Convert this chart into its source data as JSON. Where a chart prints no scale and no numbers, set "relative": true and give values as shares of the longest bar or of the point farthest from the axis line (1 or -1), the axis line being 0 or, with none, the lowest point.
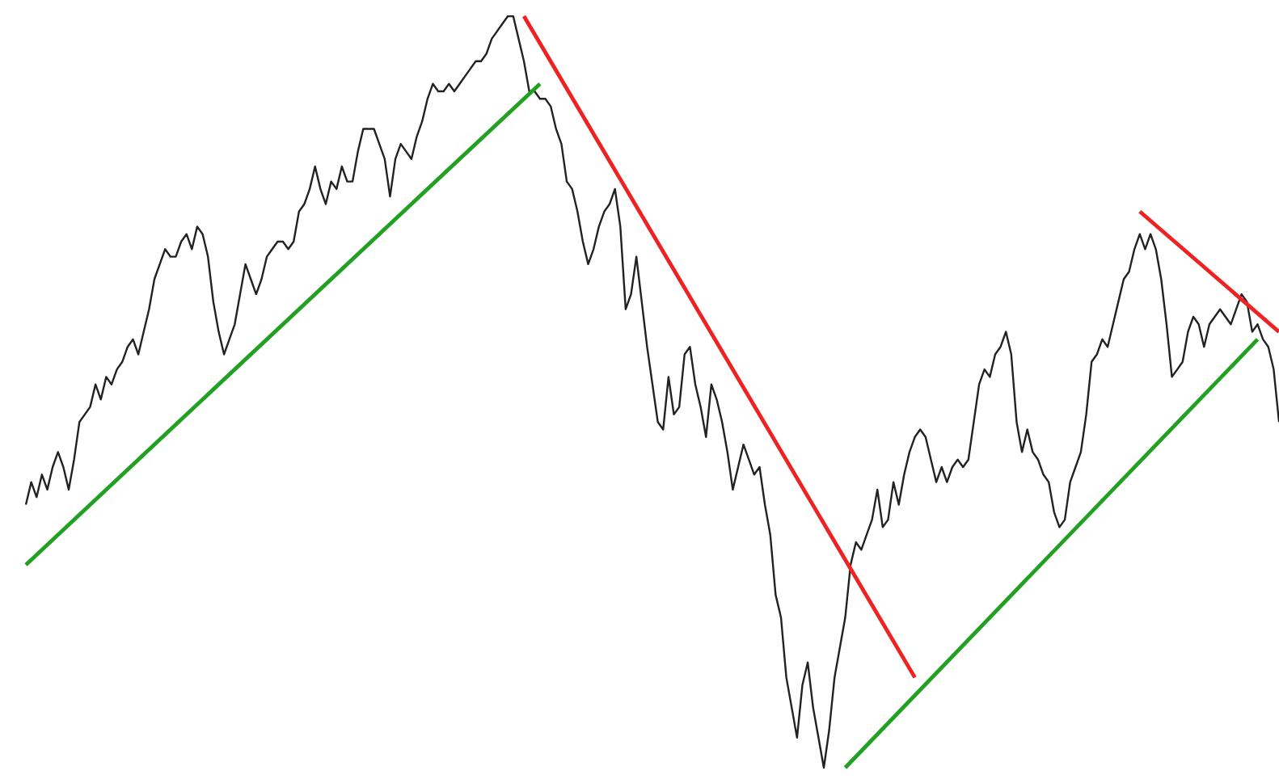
{
  "chart_data": {
    "type": "line",
    "relative": true,
    "categories": [
      null,
      null,
      null,
      null,
      null,
      null,
      null,
      null,
      null,
      null,
      null,
      null,
      null,
      null,
      null,
      null,
      null,
      null,
      null,
      null,
      null,
      null,
      null,
      null,
      null,
      null,
      null,
      null,
      null,
      null,
      null,
      null,
      null,
      null,
      null,
      null,
      null,
      null,
      null,
      null,
      null,
      null,
      null,
      null,
      null,
      null,
      null,
      null,
      null,
      null,
      null,
      null,
      null,
      null,
      null,
      null,
      null,
      null,
      null,
      null,
      null,
      null,
      null,
      null,
      null,
      null,
      null,
      null,
      null,
      null,
      null,
      null,
      null,
      null,
      null,
      null,
      null,
      null,
      null,
      null,
      null,
      null,
      null,
      null,
      null,
      null,
      null,
      null,
      null,
      null,
      null,
      null,
      null,
      null,
      null,
      null,
      null,
      null,
      null,
      null,
      null,
      null,
      null,
      null,
      null,
      null,
      null,
      null,
      null,
      null,
      null,
      null,
      null,
      null,
      null,
      null,
      null,
      null,
      null,
      null,
      null,
      null,
      null,
      null,
      null,
      null,
      null,
      null,
      null,
      null,
      null,
      null,
      null,
      null,
      null,
      null,
      null,
      null,
      null,
      null,
      null,
      null,
      null,
      null,
      null,
      null,
      null,
      null,
      null,
      null,
      null,
      null,
      null,
      null,
      null,
      null,
      null,
      null,
      null,
      null,
      null,
      null,
      null,
      null,
      null,
      null,
      null,
      null,
      null,
      null,
      null,
      null,
      null,
      null,
      null,
      null,
      null,
      null,
      null,
      null,
      null,
      null,
      null,
      null,
      null,
      null,
      null,
      null,
      null,
      null,
      null,
      null,
      null,
      null,
      null,
      null,
      null,
      null,
      null,
      null,
      null,
      null,
      null,
      null,
      null,
      null,
      null,
      null,
      null,
      null,
      null,
      null,
      null,
      null,
      null,
      null,
      null,
      null,
      null,
      null,
      null,
      null,
      null,
      null,
      null,
      null,
      null,
      null,
      null,
      null,
      null,
      null,
      null,
      null,
      null
    ],
    "series": [
      {
        "color": "#222222",
        "values": [
          0.35,
          0.38,
          0.36,
          0.39,
          0.37,
          0.4,
          0.42,
          0.4,
          0.37,
          0.41,
          0.46,
          0.47,
          0.48,
          0.51,
          0.49,
          0.52,
          0.51,
          0.53,
          0.54,
          0.56,
          0.57,
          0.55,
          0.58,
          0.61,
          0.65,
          0.67,
          0.69,
          0.68,
          0.68,
          0.7,
          0.71,
          0.69,
          0.72,
          0.71,
          0.68,
          0.62,
          0.58,
          0.55,
          0.57,
          0.59,
          0.63,
          0.67,
          0.65,
          0.63,
          0.65,
          0.68,
          0.69,
          0.7,
          0.7,
          0.69,
          0.7,
          0.74,
          0.75,
          0.77,
          0.8,
          0.77,
          0.75,
          0.78,
          0.77,
          0.8,
          0.78,
          0.78,
          0.82,
          0.85,
          0.85,
          0.85,
          0.83,
          0.81,
          0.76,
          0.81,
          0.83,
          0.82,
          0.81,
          0.84,
          0.86,
          0.89,
          0.91,
          0.9,
          0.9,
          0.91,
          0.9,
          0.91,
          0.92,
          0.93,
          0.94,
          0.94,
          0.95,
          0.97,
          0.98,
          0.99,
          1.0,
          1.0,
          0.97,
          0.94,
          0.9,
          0.9,
          0.89,
          0.89,
          0.88,
          0.85,
          0.83,
          0.78,
          0.77,
          0.74,
          0.7,
          0.67,
          0.69,
          0.72,
          0.74,
          0.75,
          0.77,
          0.72,
          0.61,
          0.63,
          0.68,
          0.62,
          0.56,
          0.51,
          0.46,
          0.45,
          0.52,
          0.47,
          0.48,
          0.55,
          0.56,
          0.51,
          0.48,
          0.44,
          0.51,
          0.49,
          0.46,
          0.42,
          0.37,
          0.4,
          0.43,
          0.41,
          0.39,
          0.4,
          0.35,
          0.31,
          0.23,
          0.2,
          0.12,
          0.08,
          0.04,
          0.11,
          0.14,
          0.08,
          0.04,
          0,
          0.05,
          0.12,
          0.16,
          0.2,
          0.27,
          0.3,
          0.29,
          0.31,
          0.33,
          0.37,
          0.32,
          0.33,
          0.38,
          0.35,
          0.39,
          0.42,
          0.44,
          0.45,
          0.44,
          0.41,
          0.38,
          0.4,
          0.38,
          0.4,
          0.41,
          0.4,
          0.41,
          0.46,
          0.51,
          0.53,
          0.52,
          0.55,
          0.56,
          0.58,
          0.55,
          0.46,
          0.42,
          0.45,
          0.42,
          0.41,
          0.39,
          0.38,
          0.34,
          0.32,
          0.33,
          0.38,
          0.4,
          0.42,
          0.47,
          0.54,
          0.55,
          0.57,
          0.56,
          0.59,
          0.62,
          0.65,
          0.66,
          0.69,
          0.71,
          0.69,
          0.71,
          0.69,
          0.65,
          0.59,
          0.52,
          0.53,
          0.54,
          0.58,
          0.6,
          0.59,
          0.56,
          0.59,
          0.6,
          0.61,
          0.6,
          0.59,
          0.61,
          0.63,
          0.62,
          0.58,
          0.59,
          0.57,
          0.56,
          0.53,
          0.46
        ]
      },
      {
        "color": "#22a022",
        "values": [
          0.27,
          null,
          null,
          null,
          null,
          null,
          null,
          null,
          null,
          null,
          null,
          null,
          null,
          null,
          null,
          null,
          null,
          null,
          null,
          null,
          null,
          null,
          null,
          null,
          null,
          null,
          null,
          null,
          null,
          null,
          null,
          null,
          null,
          null,
          null,
          null,
          null,
          null,
          null,
          null,
          null,
          null,
          null,
          null,
          null,
          null,
          null,
          null,
          null,
          null,
          null,
          null,
          null,
          null,
          null,
          null,
          null,
          null,
          null,
          null,
          null,
          null,
          null,
          null,
          null,
          null,
          null,
          null,
          null,
          null,
          null,
          null,
          null,
          null,
          null,
          null,
          null,
          null,
          null,
          null,
          null,
          null,
          null,
          null,
          null,
          null,
          null,
          null,
          null,
          null,
          null,
          null,
          null,
          null,
          null,
          null,
          0.91,
          null,
          null,
          null,
          null,
          null,
          null,
          null,
          null,
          null,
          null,
          null,
          null,
          null,
          null,
          null,
          null,
          null,
          null,
          null,
          null,
          null,
          null,
          null,
          null,
          null,
          null,
          null,
          null,
          null,
          null,
          null,
          null,
          null,
          null,
          null,
          null,
          null,
          null,
          null,
          null,
          null,
          null,
          null,
          null,
          null,
          null,
          null,
          null,
          null,
          null,
          null,
          null,
          null,
          null,
          null,
          null,
          null,
          null,
          null,
          null,
          null,
          null,
          null,
          null,
          null,
          null,
          null,
          null,
          null,
          null,
          null,
          null,
          null,
          null,
          null,
          null,
          null,
          null,
          null,
          null,
          null,
          null,
          null,
          null,
          null,
          null,
          null,
          null,
          null,
          null,
          null,
          null,
          null,
          null,
          null,
          null,
          null,
          null,
          null,
          null,
          null,
          null,
          null,
          null,
          null,
          null,
          null,
          null,
          null,
          null,
          null,
          null,
          null,
          null,
          null,
          null,
          null,
          null,
          null,
          null,
          null,
          null,
          null,
          null,
          null,
          null,
          null,
          null,
          null,
          null,
          null,
          null,
          null,
          null,
          null,
          null,
          null,
          null
        ]
      },
      {
        "color": "#ee2222",
        "values": [
          null,
          null,
          null,
          null,
          null,
          null,
          null,
          null,
          null,
          null,
          null,
          null,
          null,
          null,
          null,
          null,
          null,
          null,
          null,
          null,
          null,
          null,
          null,
          null,
          null,
          null,
          null,
          null,
          null,
          null,
          null,
          null,
          null,
          null,
          null,
          null,
          null,
          null,
          null,
          null,
          null,
          null,
          null,
          null,
          null,
          null,
          null,
          null,
          null,
          null,
          null,
          null,
          null,
          null,
          null,
          null,
          null,
          null,
          null,
          null,
          null,
          null,
          null,
          null,
          null,
          null,
          null,
          null,
          null,
          null,
          null,
          null,
          null,
          null,
          null,
          null,
          null,
          null,
          null,
          null,
          null,
          null,
          null,
          null,
          null,
          null,
          null,
          null,
          null,
          null,
          null,
          null,
          null,
          1.0,
          null,
          null,
          null,
          null,
          null,
          null,
          null,
          null,
          null,
          null,
          null,
          null,
          null,
          null,
          null,
          null,
          null,
          null,
          null,
          null,
          null,
          null,
          null,
          null,
          null,
          null,
          null,
          null,
          null,
          null,
          null,
          null,
          null,
          null,
          null,
          null,
          null,
          null,
          null,
          null,
          null,
          null,
          null,
          null,
          null,
          null,
          null,
          null,
          null,
          null,
          null,
          null,
          null,
          null,
          null,
          null,
          null,
          null,
          null,
          null,
          null,
          null,
          null,
          null,
          null,
          null,
          null,
          null,
          null,
          null,
          null,
          null,
          0.12,
          null,
          null,
          null,
          null,
          null,
          null,
          null,
          null,
          null,
          null,
          null,
          null,
          null,
          null,
          null,
          null,
          null,
          null,
          null,
          null,
          null,
          null,
          null,
          null,
          null,
          null,
          null,
          null,
          null,
          null,
          null,
          null,
          null,
          null,
          null,
          null,
          null,
          null,
          null,
          null,
          null,
          null,
          null,
          null,
          null,
          null,
          null,
          null,
          null,
          null,
          null,
          null,
          null,
          null,
          null,
          null,
          null,
          null,
          null,
          null,
          null,
          null,
          null,
          null,
          null,
          null,
          null,
          null
        ]
      },
      {
        "color": "#ee2222",
        "values": [
          null,
          null,
          null,
          null,
          null,
          null,
          null,
          null,
          null,
          null,
          null,
          null,
          null,
          null,
          null,
          null,
          null,
          null,
          null,
          null,
          null,
          null,
          null,
          null,
          null,
          null,
          null,
          null,
          null,
          null,
          null,
          null,
          null,
          null,
          null,
          null,
          null,
          null,
          null,
          null,
          null,
          null,
          null,
          null,
          null,
          null,
          null,
          null,
          null,
          null,
          null,
          null,
          null,
          null,
          null,
          null,
          null,
          null,
          null,
          null,
          null,
          null,
          null,
          null,
          null,
          null,
          null,
          null,
          null,
          null,
          null,
          null,
          null,
          null,
          null,
          null,
          null,
          null,
          null,
          null,
          null,
          null,
          null,
          null,
          null,
          null,
          null,
          null,
          null,
          null,
          null,
          null,
          null,
          null,
          null,
          null,
          null,
          null,
          null,
          null,
          null,
          null,
          null,
          null,
          null,
          null,
          null,
          null,
          null,
          null,
          null,
          null,
          null,
          null,
          null,
          null,
          null,
          null,
          null,
          null,
          null,
          null,
          null,
          null,
          null,
          null,
          null,
          null,
          null,
          null,
          null,
          null,
          null,
          null,
          null,
          null,
          null,
          null,
          null,
          null,
          null,
          null,
          null,
          null,
          null,
          null,
          null,
          null,
          null,
          null,
          null,
          null,
          null,
          null,
          null,
          null,
          null,
          null,
          null,
          null,
          null,
          null,
          null,
          null,
          null,
          null,
          null,
          null,
          null,
          null,
          null,
          null,
          null,
          null,
          null,
          null,
          null,
          null,
          null,
          null,
          null,
          null,
          null,
          null,
          null,
          null,
          null,
          null,
          null,
          null,
          null,
          null,
          null,
          null,
          null,
          null,
          null,
          null,
          null,
          null,
          null,
          null,
          null,
          null,
          null,
          null,
          null,
          null,
          0.74,
          null,
          null,
          null,
          null,
          null,
          null,
          null,
          null,
          null,
          null,
          null,
          null,
          null,
          null,
          null,
          null,
          null,
          null,
          null,
          null,
          null,
          null,
          null,
          null,
          null,
          0.58
        ]
      },
      {
        "color": "#22a022",
        "values": [
          null,
          null,
          null,
          null,
          null,
          null,
          null,
          null,
          null,
          null,
          null,
          null,
          null,
          null,
          null,
          null,
          null,
          null,
          null,
          null,
          null,
          null,
          null,
          null,
          null,
          null,
          null,
          null,
          null,
          null,
          null,
          null,
          null,
          null,
          null,
          null,
          null,
          null,
          null,
          null,
          null,
          null,
          null,
          null,
          null,
          null,
          null,
          null,
          null,
          null,
          null,
          null,
          null,
          null,
          null,
          null,
          null,
          null,
          null,
          null,
          null,
          null,
          null,
          null,
          null,
          null,
          null,
          null,
          null,
          null,
          null,
          null,
          null,
          null,
          null,
          null,
          null,
          null,
          null,
          null,
          null,
          null,
          null,
          null,
          null,
          null,
          null,
          null,
          null,
          null,
          null,
          null,
          null,
          null,
          null,
          null,
          null,
          null,
          null,
          null,
          null,
          null,
          null,
          null,
          null,
          null,
          null,
          null,
          null,
          null,
          null,
          null,
          null,
          null,
          null,
          null,
          null,
          null,
          null,
          null,
          null,
          null,
          null,
          null,
          null,
          null,
          null,
          null,
          null,
          null,
          null,
          null,
          null,
          null,
          null,
          null,
          null,
          null,
          null,
          null,
          null,
          null,
          null,
          null,
          null,
          null,
          null,
          null,
          null,
          null,
          null,
          null,
          null,
          0,
          null,
          null,
          null,
          null,
          null,
          null,
          null,
          null,
          null,
          null,
          null,
          null,
          null,
          null,
          null,
          null,
          null,
          null,
          null,
          null,
          null,
          null,
          null,
          null,
          null,
          null,
          null,
          null,
          null,
          null,
          null,
          null,
          null,
          null,
          null,
          null,
          null,
          null,
          null,
          null,
          null,
          null,
          null,
          null,
          null,
          null,
          null,
          null,
          null,
          null,
          null,
          null,
          null,
          null,
          null,
          null,
          null,
          null,
          null,
          null,
          null,
          null,
          null,
          null,
          null,
          null,
          null,
          null,
          null,
          null,
          null,
          null,
          null,
          null,
          null,
          null,
          0.57,
          null,
          null,
          null,
          null
        ]
      }
    ]
  }
}
